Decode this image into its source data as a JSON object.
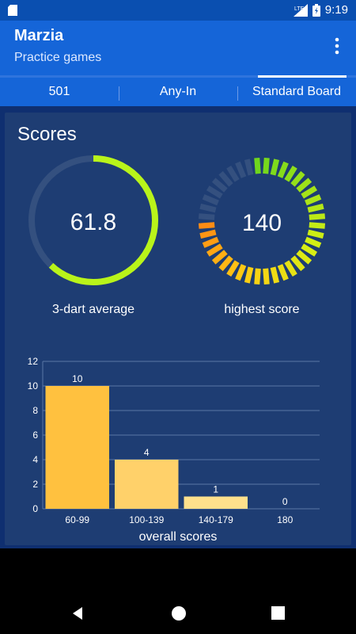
{
  "status_bar": {
    "time": "9:19",
    "network": "LTE",
    "icons": [
      "sd-card-icon",
      "signal-icon",
      "battery-icon"
    ]
  },
  "app_bar": {
    "title": "Marzia",
    "subtitle": "Practice games",
    "menu_icon": "more-vert-icon"
  },
  "progress": {
    "value": 0.25
  },
  "tabs": [
    "501",
    "Any-In",
    "Standard Board"
  ],
  "scores": {
    "heading": "Scores",
    "average": {
      "value": "61.8",
      "label": "3-dart average",
      "fraction": 0.62
    },
    "highest": {
      "value": "140",
      "label": "highest score",
      "fraction": 0.78
    }
  },
  "chart_data": {
    "type": "bar",
    "categories": [
      "60-99",
      "100-139",
      "140-179",
      "180"
    ],
    "values": [
      10,
      4,
      1,
      0
    ],
    "data_labels": [
      "10",
      "4",
      "1",
      "0"
    ],
    "xlabel": "overall scores",
    "ylabel": "",
    "ylim": [
      0,
      12
    ],
    "yticks": [
      "0",
      "2",
      "4",
      "6",
      "8",
      "10",
      "12"
    ],
    "grid": true,
    "colors": [
      "#ffc13f",
      "#ffd16a",
      "#ffe08c",
      "#ffeaa8"
    ]
  },
  "colors": {
    "statusbar": "#0a4fb0",
    "appbar": "#1565d8",
    "background": "#0f2f70",
    "card": "#1e3d73",
    "gauge_green": "#b9f41a",
    "gauge_track": "#34507f"
  },
  "nav": {
    "icons": [
      "back-icon",
      "home-icon",
      "recents-icon"
    ]
  }
}
